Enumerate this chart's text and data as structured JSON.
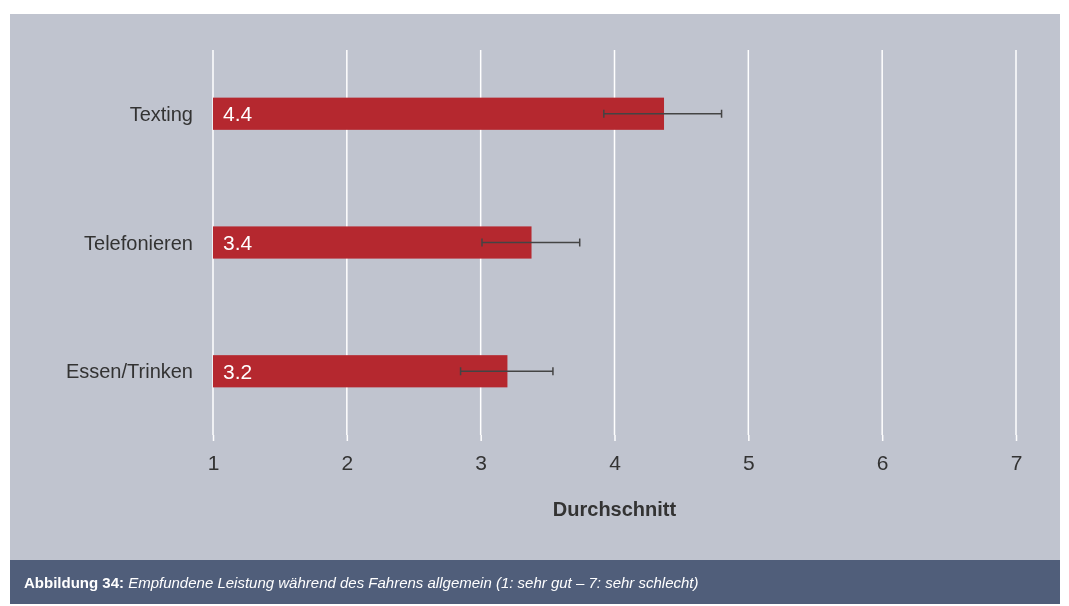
{
  "chart_data": {
    "type": "bar",
    "orientation": "horizontal",
    "categories": [
      "Texting",
      "Telefonieren",
      "Essen/Trinken"
    ],
    "values": [
      4.37,
      3.38,
      3.2
    ],
    "value_labels": [
      "4.4",
      "3.4",
      "3.2"
    ],
    "errors": [
      [
        3.92,
        4.8
      ],
      [
        3.01,
        3.74
      ],
      [
        2.85,
        3.54
      ]
    ],
    "color": "#b5282f",
    "xlim": [
      1,
      7
    ],
    "xticks": [
      1,
      2,
      3,
      4,
      5,
      6,
      7
    ],
    "xlabel": "Durchschnitt",
    "grid": "x",
    "annotations": [
      "Abbildung 34: Empfundene Leistung während des Fahrens allgemein (1: sehr gut – 7: sehr schlecht)"
    ]
  }
}
